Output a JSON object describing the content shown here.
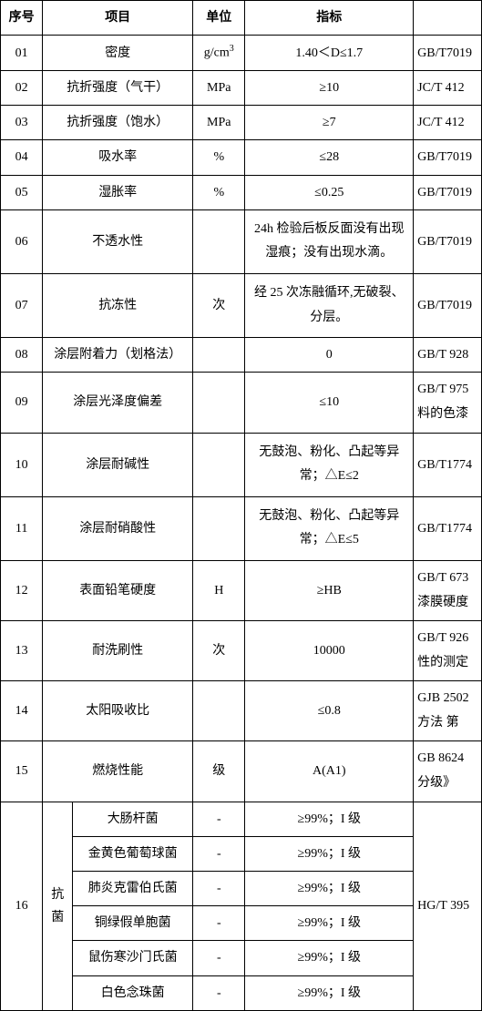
{
  "headers": {
    "seq": "序号",
    "item": "项目",
    "unit": "单位",
    "spec": "指标"
  },
  "rows": [
    {
      "seq": "01",
      "item": "密度",
      "unit": "g/cm",
      "unit_sup": "3",
      "spec": "1.40＜D≤1.7",
      "std": "GB/T7019"
    },
    {
      "seq": "02",
      "item": "抗折强度（气干）",
      "unit": "MPa",
      "spec": "≥10",
      "std": "JC/T 412"
    },
    {
      "seq": "03",
      "item": "抗折强度（饱水）",
      "unit": "MPa",
      "spec": "≥7",
      "std": "JC/T 412"
    },
    {
      "seq": "04",
      "item": "吸水率",
      "unit": "%",
      "spec": "≤28",
      "std": "GB/T7019"
    },
    {
      "seq": "05",
      "item": "湿胀率",
      "unit": "%",
      "spec": "≤0.25",
      "std": "GB/T7019"
    },
    {
      "seq": "06",
      "item": "不透水性",
      "unit": "",
      "spec": "24h 检验后板反面没有出现湿痕；没有出现水滴。",
      "std": "GB/T7019",
      "multiline": true
    },
    {
      "seq": "07",
      "item": "抗冻性",
      "unit": "次",
      "spec": "经 25 次冻融循环,无破裂、分层。",
      "std": "GB/T7019",
      "multiline": true
    },
    {
      "seq": "08",
      "item": "涂层附着力（划格法）",
      "unit": "",
      "spec": "0",
      "std": "GB/T 928"
    },
    {
      "seq": "09",
      "item": "涂层光泽度偏差",
      "unit": "",
      "spec": "≤10",
      "std": "GB/T 975 料的色漆",
      "std_multi": true
    },
    {
      "seq": "10",
      "item": "涂层耐碱性",
      "unit": "",
      "spec": "无鼓泡、粉化、凸起等异常；△E≤2",
      "std": "GB/T1774",
      "multiline": true
    },
    {
      "seq": "11",
      "item": "涂层耐硝酸性",
      "unit": "",
      "spec": "无鼓泡、粉化、凸起等异常；△E≤5",
      "std": "GB/T1774",
      "multiline": true
    },
    {
      "seq": "12",
      "item": "表面铅笔硬度",
      "unit": "H",
      "spec": "≥HB",
      "std": "GB/T 673 漆膜硬度",
      "std_multi": true
    },
    {
      "seq": "13",
      "item": "耐洗刷性",
      "unit": "次",
      "spec": "10000",
      "std": "GB/T 926 性的测定",
      "std_multi": true
    },
    {
      "seq": "14",
      "item": "太阳吸收比",
      "unit": "",
      "spec": "≤0.8",
      "std": "GJB 2502 方法 第",
      "std_multi": true
    },
    {
      "seq": "15",
      "item": "燃烧性能",
      "unit": "级",
      "spec": "A(A1)",
      "std": "GB 8624 分级》",
      "std_multi": true
    }
  ],
  "row16": {
    "seq": "16",
    "item": "抗菌",
    "std": "HG/T 395",
    "subitems": [
      {
        "name": "大肠杆菌",
        "unit": "-",
        "spec": "≥99%；I 级"
      },
      {
        "name": "金黄色葡萄球菌",
        "unit": "-",
        "spec": "≥99%；I 级"
      },
      {
        "name": "肺炎克雷伯氏菌",
        "unit": "-",
        "spec": "≥99%；I 级"
      },
      {
        "name": "铜绿假单胞菌",
        "unit": "-",
        "spec": "≥99%；I 级"
      },
      {
        "name": "鼠伤寒沙门氏菌",
        "unit": "-",
        "spec": "≥99%；I 级"
      },
      {
        "name": "白色念珠菌",
        "unit": "-",
        "spec": "≥99%；I 级"
      }
    ]
  }
}
